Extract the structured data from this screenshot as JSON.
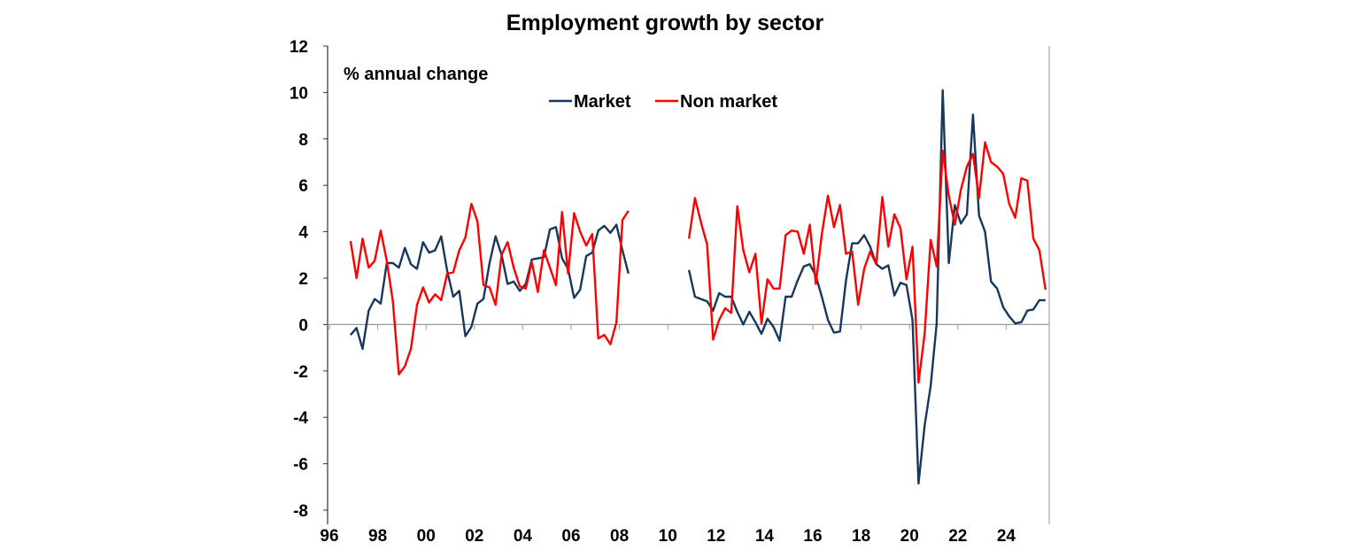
{
  "chart_data": {
    "type": "line",
    "title": "Employment growth by sector",
    "ylabel": "% annual change",
    "xlabel": "",
    "frequency": "quarterly",
    "start": "1996-Q4",
    "xlim": [
      1996,
      2026
    ],
    "ylim": [
      -8,
      12
    ],
    "xticks": [
      1996,
      1998,
      2000,
      2002,
      2004,
      2006,
      2008,
      2010,
      2012,
      2014,
      2016,
      2018,
      2020,
      2022,
      2024
    ],
    "xtick_labels": [
      "96",
      "98",
      "00",
      "02",
      "04",
      "06",
      "08",
      "10",
      "12",
      "14",
      "16",
      "18",
      "20",
      "22",
      "24"
    ],
    "yticks": [
      -8,
      -6,
      -4,
      -2,
      0,
      2,
      4,
      6,
      8,
      10,
      12
    ],
    "ytick_labels": [
      "-8",
      "-6",
      "-4",
      "-2",
      "0",
      "2",
      "4",
      "6",
      "8",
      "10",
      "12"
    ],
    "grid": false,
    "legend_placement": "top-center",
    "series": [
      {
        "name": "Market",
        "color": "#17375e",
        "values": [
          -0.45,
          -0.15,
          -1.05,
          0.6,
          1.1,
          0.9,
          2.65,
          2.65,
          2.45,
          3.3,
          2.6,
          2.4,
          3.55,
          3.1,
          3.2,
          3.8,
          2.3,
          1.2,
          1.45,
          -0.5,
          -0.1,
          0.9,
          1.1,
          2.65,
          3.8,
          3.0,
          1.75,
          1.85,
          1.45,
          1.75,
          2.8,
          2.85,
          2.9,
          4.1,
          4.2,
          2.85,
          2.4,
          1.15,
          1.5,
          2.95,
          3.1,
          4.05,
          4.25,
          3.95,
          4.3,
          3.2,
          2.2,
          null,
          null,
          null,
          null,
          null,
          null,
          null,
          null,
          null,
          2.35,
          1.2,
          1.1,
          1.0,
          0.6,
          1.35,
          1.2,
          1.2,
          0.55,
          0,
          0.55,
          0.1,
          -0.4,
          0.25,
          -0.1,
          -0.7,
          1.2,
          1.2,
          1.9,
          2.5,
          2.6,
          2.1,
          1.2,
          0.2,
          -0.35,
          -0.3,
          1.9,
          3.5,
          3.5,
          3.85,
          3.35,
          2.6,
          2.4,
          2.55,
          1.25,
          1.8,
          1.7,
          0.2,
          -6.85,
          -4.35,
          -2.65,
          0.05,
          10.1,
          2.65,
          5.15,
          4.35,
          4.75,
          9.05,
          4.7,
          4.0,
          1.85,
          1.55,
          0.75,
          0.35,
          0.05,
          0.1,
          0.6,
          0.65,
          1.05,
          1.05
        ]
      },
      {
        "name": "Non market",
        "color": "#ff0000",
        "values": [
          3.6,
          2.0,
          3.7,
          2.45,
          2.75,
          4.05,
          2.75,
          1.0,
          -2.15,
          -1.8,
          -1.05,
          0.85,
          1.6,
          0.95,
          1.3,
          1.05,
          2.2,
          2.25,
          3.2,
          3.75,
          5.2,
          4.45,
          1.7,
          1.6,
          0.85,
          3.0,
          3.55,
          2.45,
          1.65,
          1.55,
          2.7,
          1.4,
          3.2,
          2.45,
          1.7,
          4.85,
          2.2,
          4.8,
          4.0,
          3.4,
          3.9,
          -0.6,
          -0.45,
          -0.85,
          0.1,
          4.5,
          4.9,
          null,
          null,
          null,
          null,
          null,
          null,
          null,
          null,
          null,
          3.7,
          5.45,
          4.4,
          3.45,
          -0.65,
          0.2,
          0.7,
          0.5,
          5.1,
          3.2,
          2.25,
          3.05,
          0.05,
          1.95,
          1.55,
          1.55,
          3.85,
          4.05,
          4.0,
          3.05,
          4.3,
          1.75,
          3.9,
          5.55,
          4.2,
          5.15,
          3.05,
          3.15,
          0.85,
          2.4,
          3.15,
          2.6,
          5.5,
          3.35,
          4.75,
          4.15,
          1.95,
          3.35,
          -2.5,
          -0.4,
          3.65,
          2.5,
          7.5,
          5.55,
          4.3,
          5.8,
          6.8,
          7.35,
          5.45,
          7.85,
          7.0,
          6.8,
          6.5,
          5.2,
          4.6,
          6.3,
          6.2,
          3.7,
          3.2,
          1.5
        ]
      }
    ]
  }
}
